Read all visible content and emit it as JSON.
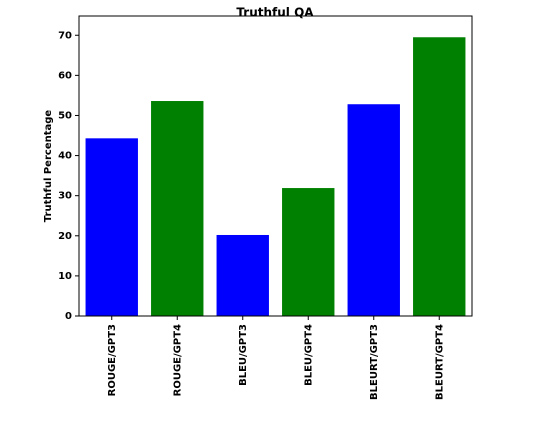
{
  "chart_data": {
    "type": "bar",
    "title": "Truthful QA",
    "ylabel": "Truthful Percentage",
    "categories": [
      "ROUGE/GPT3",
      "ROUGE/GPT4",
      "BLEU/GPT3",
      "BLEU/GPT4",
      "BLEURT/GPT3",
      "BLEURT/GPT4"
    ],
    "values": [
      44.3,
      53.6,
      20.2,
      31.9,
      52.8,
      69.5
    ],
    "colors": [
      "#0000ff",
      "#008000",
      "#0000ff",
      "#008000",
      "#0000ff",
      "#008000"
    ],
    "ylim": [
      0,
      74.8
    ],
    "yticks": [
      0,
      10,
      20,
      30,
      40,
      50,
      60,
      70
    ]
  }
}
